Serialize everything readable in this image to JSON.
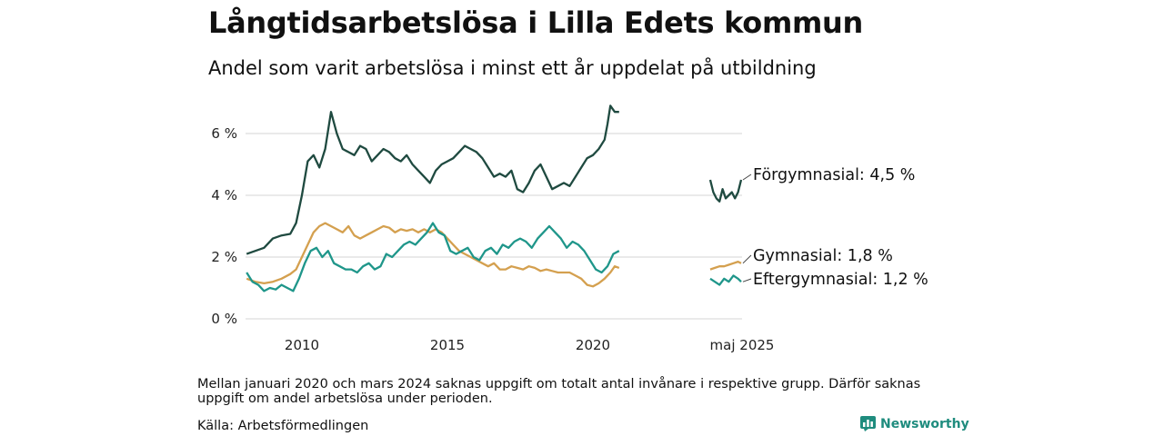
{
  "title": "Långtidsarbetslösa i Lilla Edets kommun",
  "subtitle": "Andel som varit arbetslösa i minst ett år uppdelat på utbildning",
  "note": "Mellan januari 2020 och mars 2024 saknas uppgift om totalt antal invånare i respektive grupp. Därför saknas uppgift om andel arbetslösa under perioden.",
  "source": "Källa: Arbetsförmedlingen",
  "brand": "Newsworthy",
  "colors": {
    "forgymnasial": "#1f4a40",
    "gymnasial": "#d4a04f",
    "eftergymnasial": "#1f968a",
    "grid": "#dddddd",
    "brand": "#1f8c7e"
  },
  "chart_data": {
    "type": "line",
    "ylim": [
      0,
      7
    ],
    "yticks": [
      0,
      2,
      4,
      6
    ],
    "ytick_labels": [
      "0 %",
      "2 %",
      "4 %",
      "6 %"
    ],
    "xticks": [
      2010,
      2015,
      2020
    ],
    "xtick_labels": [
      "2010",
      "2015",
      "2020"
    ],
    "recent_label": "maj 2025",
    "grid": true,
    "series": [
      {
        "name": "Förgymnasial",
        "end_label": "Förgymnasial: 4,5 %",
        "color_key": "forgymnasial",
        "history": [
          [
            2008.1,
            2.1
          ],
          [
            2008.4,
            2.2
          ],
          [
            2008.7,
            2.3
          ],
          [
            2009.0,
            2.6
          ],
          [
            2009.3,
            2.7
          ],
          [
            2009.6,
            2.75
          ],
          [
            2009.8,
            3.1
          ],
          [
            2010.0,
            4.0
          ],
          [
            2010.2,
            5.1
          ],
          [
            2010.4,
            5.3
          ],
          [
            2010.6,
            4.9
          ],
          [
            2010.8,
            5.5
          ],
          [
            2011.0,
            6.7
          ],
          [
            2011.2,
            6.0
          ],
          [
            2011.4,
            5.5
          ],
          [
            2011.6,
            5.4
          ],
          [
            2011.8,
            5.3
          ],
          [
            2012.0,
            5.6
          ],
          [
            2012.2,
            5.5
          ],
          [
            2012.4,
            5.1
          ],
          [
            2012.6,
            5.3
          ],
          [
            2012.8,
            5.5
          ],
          [
            2013.0,
            5.4
          ],
          [
            2013.2,
            5.2
          ],
          [
            2013.4,
            5.1
          ],
          [
            2013.6,
            5.3
          ],
          [
            2013.8,
            5.0
          ],
          [
            2014.0,
            4.8
          ],
          [
            2014.2,
            4.6
          ],
          [
            2014.4,
            4.4
          ],
          [
            2014.6,
            4.8
          ],
          [
            2014.8,
            5.0
          ],
          [
            2015.0,
            5.1
          ],
          [
            2015.2,
            5.2
          ],
          [
            2015.4,
            5.4
          ],
          [
            2015.6,
            5.6
          ],
          [
            2015.8,
            5.5
          ],
          [
            2016.0,
            5.4
          ],
          [
            2016.2,
            5.2
          ],
          [
            2016.4,
            4.9
          ],
          [
            2016.6,
            4.6
          ],
          [
            2016.8,
            4.7
          ],
          [
            2017.0,
            4.6
          ],
          [
            2017.2,
            4.8
          ],
          [
            2017.4,
            4.2
          ],
          [
            2017.6,
            4.1
          ],
          [
            2017.8,
            4.4
          ],
          [
            2018.0,
            4.8
          ],
          [
            2018.2,
            5.0
          ],
          [
            2018.4,
            4.6
          ],
          [
            2018.6,
            4.2
          ],
          [
            2018.8,
            4.3
          ],
          [
            2019.0,
            4.4
          ],
          [
            2019.2,
            4.3
          ],
          [
            2019.4,
            4.6
          ],
          [
            2019.6,
            4.9
          ],
          [
            2019.8,
            5.2
          ],
          [
            2020.0,
            5.3
          ],
          [
            2020.2,
            5.5
          ],
          [
            2020.4,
            5.8
          ],
          [
            2020.5,
            6.3
          ],
          [
            2020.6,
            6.9
          ],
          [
            2020.75,
            6.7
          ],
          [
            2020.9,
            6.7
          ]
        ],
        "recent": [
          [
            0.0,
            4.5
          ],
          [
            0.1,
            4.1
          ],
          [
            0.2,
            3.9
          ],
          [
            0.3,
            3.8
          ],
          [
            0.4,
            4.2
          ],
          [
            0.5,
            3.9
          ],
          [
            0.6,
            4.0
          ],
          [
            0.7,
            4.1
          ],
          [
            0.8,
            3.9
          ],
          [
            0.9,
            4.1
          ],
          [
            1.0,
            4.5
          ]
        ]
      },
      {
        "name": "Gymnasial",
        "end_label": "Gymnasial: 1,8 %",
        "color_key": "gymnasial",
        "history": [
          [
            2008.1,
            1.3
          ],
          [
            2008.4,
            1.2
          ],
          [
            2008.7,
            1.15
          ],
          [
            2009.0,
            1.2
          ],
          [
            2009.3,
            1.3
          ],
          [
            2009.6,
            1.45
          ],
          [
            2009.8,
            1.6
          ],
          [
            2010.0,
            2.0
          ],
          [
            2010.2,
            2.4
          ],
          [
            2010.4,
            2.8
          ],
          [
            2010.6,
            3.0
          ],
          [
            2010.8,
            3.1
          ],
          [
            2011.0,
            3.0
          ],
          [
            2011.2,
            2.9
          ],
          [
            2011.4,
            2.8
          ],
          [
            2011.6,
            3.0
          ],
          [
            2011.8,
            2.7
          ],
          [
            2012.0,
            2.6
          ],
          [
            2012.2,
            2.7
          ],
          [
            2012.4,
            2.8
          ],
          [
            2012.6,
            2.9
          ],
          [
            2012.8,
            3.0
          ],
          [
            2013.0,
            2.95
          ],
          [
            2013.2,
            2.8
          ],
          [
            2013.4,
            2.9
          ],
          [
            2013.6,
            2.85
          ],
          [
            2013.8,
            2.9
          ],
          [
            2014.0,
            2.8
          ],
          [
            2014.2,
            2.9
          ],
          [
            2014.4,
            2.8
          ],
          [
            2014.6,
            2.9
          ],
          [
            2014.8,
            2.8
          ],
          [
            2015.0,
            2.6
          ],
          [
            2015.2,
            2.4
          ],
          [
            2015.4,
            2.2
          ],
          [
            2015.6,
            2.1
          ],
          [
            2015.8,
            2.0
          ],
          [
            2016.0,
            1.9
          ],
          [
            2016.2,
            1.8
          ],
          [
            2016.4,
            1.7
          ],
          [
            2016.6,
            1.8
          ],
          [
            2016.8,
            1.6
          ],
          [
            2017.0,
            1.6
          ],
          [
            2017.2,
            1.7
          ],
          [
            2017.4,
            1.65
          ],
          [
            2017.6,
            1.6
          ],
          [
            2017.8,
            1.7
          ],
          [
            2018.0,
            1.65
          ],
          [
            2018.2,
            1.55
          ],
          [
            2018.4,
            1.6
          ],
          [
            2018.6,
            1.55
          ],
          [
            2018.8,
            1.5
          ],
          [
            2019.0,
            1.5
          ],
          [
            2019.2,
            1.5
          ],
          [
            2019.4,
            1.4
          ],
          [
            2019.6,
            1.3
          ],
          [
            2019.8,
            1.1
          ],
          [
            2020.0,
            1.05
          ],
          [
            2020.2,
            1.15
          ],
          [
            2020.4,
            1.3
          ],
          [
            2020.6,
            1.5
          ],
          [
            2020.75,
            1.7
          ],
          [
            2020.9,
            1.65
          ]
        ],
        "recent": [
          [
            0.0,
            1.6
          ],
          [
            0.15,
            1.65
          ],
          [
            0.3,
            1.7
          ],
          [
            0.45,
            1.7
          ],
          [
            0.6,
            1.75
          ],
          [
            0.75,
            1.8
          ],
          [
            0.9,
            1.85
          ],
          [
            1.0,
            1.8
          ]
        ]
      },
      {
        "name": "Eftergymnasial",
        "end_label": "Eftergymnasial: 1,2 %",
        "color_key": "eftergymnasial",
        "history": [
          [
            2008.1,
            1.5
          ],
          [
            2008.3,
            1.2
          ],
          [
            2008.5,
            1.1
          ],
          [
            2008.7,
            0.9
          ],
          [
            2008.9,
            1.0
          ],
          [
            2009.1,
            0.95
          ],
          [
            2009.3,
            1.1
          ],
          [
            2009.5,
            1.0
          ],
          [
            2009.7,
            0.9
          ],
          [
            2009.9,
            1.3
          ],
          [
            2010.1,
            1.8
          ],
          [
            2010.3,
            2.2
          ],
          [
            2010.5,
            2.3
          ],
          [
            2010.7,
            2.0
          ],
          [
            2010.9,
            2.2
          ],
          [
            2011.1,
            1.8
          ],
          [
            2011.3,
            1.7
          ],
          [
            2011.5,
            1.6
          ],
          [
            2011.7,
            1.6
          ],
          [
            2011.9,
            1.5
          ],
          [
            2012.1,
            1.7
          ],
          [
            2012.3,
            1.8
          ],
          [
            2012.5,
            1.6
          ],
          [
            2012.7,
            1.7
          ],
          [
            2012.9,
            2.1
          ],
          [
            2013.1,
            2.0
          ],
          [
            2013.3,
            2.2
          ],
          [
            2013.5,
            2.4
          ],
          [
            2013.7,
            2.5
          ],
          [
            2013.9,
            2.4
          ],
          [
            2014.1,
            2.6
          ],
          [
            2014.3,
            2.8
          ],
          [
            2014.5,
            3.1
          ],
          [
            2014.7,
            2.8
          ],
          [
            2014.9,
            2.7
          ],
          [
            2015.1,
            2.2
          ],
          [
            2015.3,
            2.1
          ],
          [
            2015.5,
            2.2
          ],
          [
            2015.7,
            2.3
          ],
          [
            2015.9,
            2.0
          ],
          [
            2016.1,
            1.9
          ],
          [
            2016.3,
            2.2
          ],
          [
            2016.5,
            2.3
          ],
          [
            2016.7,
            2.1
          ],
          [
            2016.9,
            2.4
          ],
          [
            2017.1,
            2.3
          ],
          [
            2017.3,
            2.5
          ],
          [
            2017.5,
            2.6
          ],
          [
            2017.7,
            2.5
          ],
          [
            2017.9,
            2.3
          ],
          [
            2018.1,
            2.6
          ],
          [
            2018.3,
            2.8
          ],
          [
            2018.5,
            3.0
          ],
          [
            2018.7,
            2.8
          ],
          [
            2018.9,
            2.6
          ],
          [
            2019.1,
            2.3
          ],
          [
            2019.3,
            2.5
          ],
          [
            2019.5,
            2.4
          ],
          [
            2019.7,
            2.2
          ],
          [
            2019.9,
            1.9
          ],
          [
            2020.1,
            1.6
          ],
          [
            2020.3,
            1.5
          ],
          [
            2020.5,
            1.7
          ],
          [
            2020.7,
            2.1
          ],
          [
            2020.9,
            2.2
          ]
        ],
        "recent": [
          [
            0.0,
            1.3
          ],
          [
            0.15,
            1.2
          ],
          [
            0.3,
            1.1
          ],
          [
            0.45,
            1.3
          ],
          [
            0.6,
            1.2
          ],
          [
            0.75,
            1.4
          ],
          [
            0.9,
            1.3
          ],
          [
            1.0,
            1.2
          ]
        ]
      }
    ]
  }
}
